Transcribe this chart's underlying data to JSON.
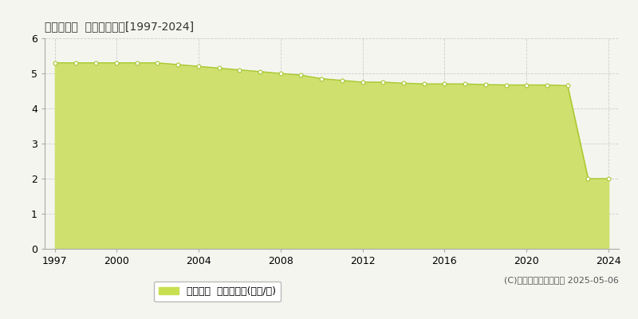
{
  "title": "日向市塩見  基準地価推移[1997-2024]",
  "years": [
    1997,
    1998,
    1999,
    2000,
    2001,
    2002,
    2003,
    2004,
    2005,
    2006,
    2007,
    2008,
    2009,
    2010,
    2011,
    2012,
    2013,
    2014,
    2015,
    2016,
    2017,
    2018,
    2019,
    2020,
    2021,
    2022,
    2023,
    2024
  ],
  "values": [
    5.3,
    5.3,
    5.3,
    5.3,
    5.3,
    5.3,
    5.25,
    5.2,
    5.15,
    5.1,
    5.05,
    5.0,
    4.95,
    4.85,
    4.8,
    4.75,
    4.75,
    4.72,
    4.7,
    4.7,
    4.7,
    4.68,
    4.67,
    4.67,
    4.67,
    4.65,
    2.0,
    2.0
  ],
  "ylim": [
    0,
    6
  ],
  "yticks": [
    0,
    1,
    2,
    3,
    4,
    5,
    6
  ],
  "xticks": [
    1997,
    2000,
    2004,
    2008,
    2012,
    2016,
    2020,
    2024
  ],
  "line_color": "#a8c832",
  "fill_color": "#cfe06e",
  "marker_facecolor": "#ffffff",
  "marker_edgecolor": "#a8c832",
  "grid_color": "#cccccc",
  "background_color": "#f5f5f0",
  "plot_bg_color": "#f5f5f0",
  "legend_label": "基準地価  平均嵪単価(万円/嵪)",
  "legend_marker_color": "#c8e050",
  "copyright_text": "(C)土地価格ドットコム 2025-05-06",
  "title_fontsize": 13,
  "axis_fontsize": 9,
  "legend_fontsize": 9,
  "copyright_fontsize": 8
}
